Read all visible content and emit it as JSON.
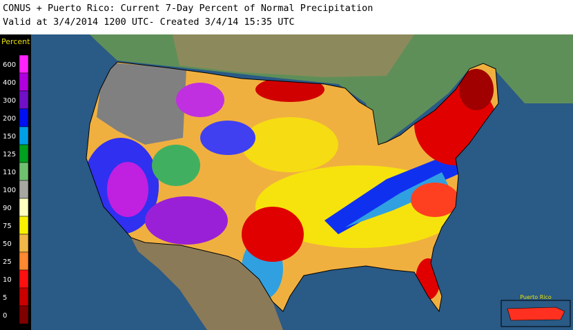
{
  "header": {
    "title": "CONUS + Puerto Rico: Current 7-Day Percent of Normal Precipitation",
    "subtitle": "Valid at 3/4/2014 1200 UTC- Created 3/4/14 15:35 UTC"
  },
  "legend": {
    "title": "Percent",
    "levels": [
      {
        "label": 600,
        "color": "#ff22ff"
      },
      {
        "label": 400,
        "color": "#b000e0"
      },
      {
        "label": 300,
        "color": "#7010c8"
      },
      {
        "label": 200,
        "color": "#0010f0"
      },
      {
        "label": 150,
        "color": "#00a0e8"
      },
      {
        "label": 125,
        "color": "#00a020"
      },
      {
        "label": 110,
        "color": "#70c070"
      },
      {
        "label": 100,
        "color": "#a8a8a0"
      },
      {
        "label": 90,
        "color": "#ffffc0"
      },
      {
        "label": 75,
        "color": "#f8f000"
      },
      {
        "label": 50,
        "color": "#f0b848"
      },
      {
        "label": 25,
        "color": "#ff8830"
      },
      {
        "label": 10,
        "color": "#ff1010"
      },
      {
        "label": 5,
        "color": "#c80000"
      },
      {
        "label": 0,
        "color": "#800000"
      }
    ]
  },
  "inset": {
    "title": "Puerto Rico"
  }
}
